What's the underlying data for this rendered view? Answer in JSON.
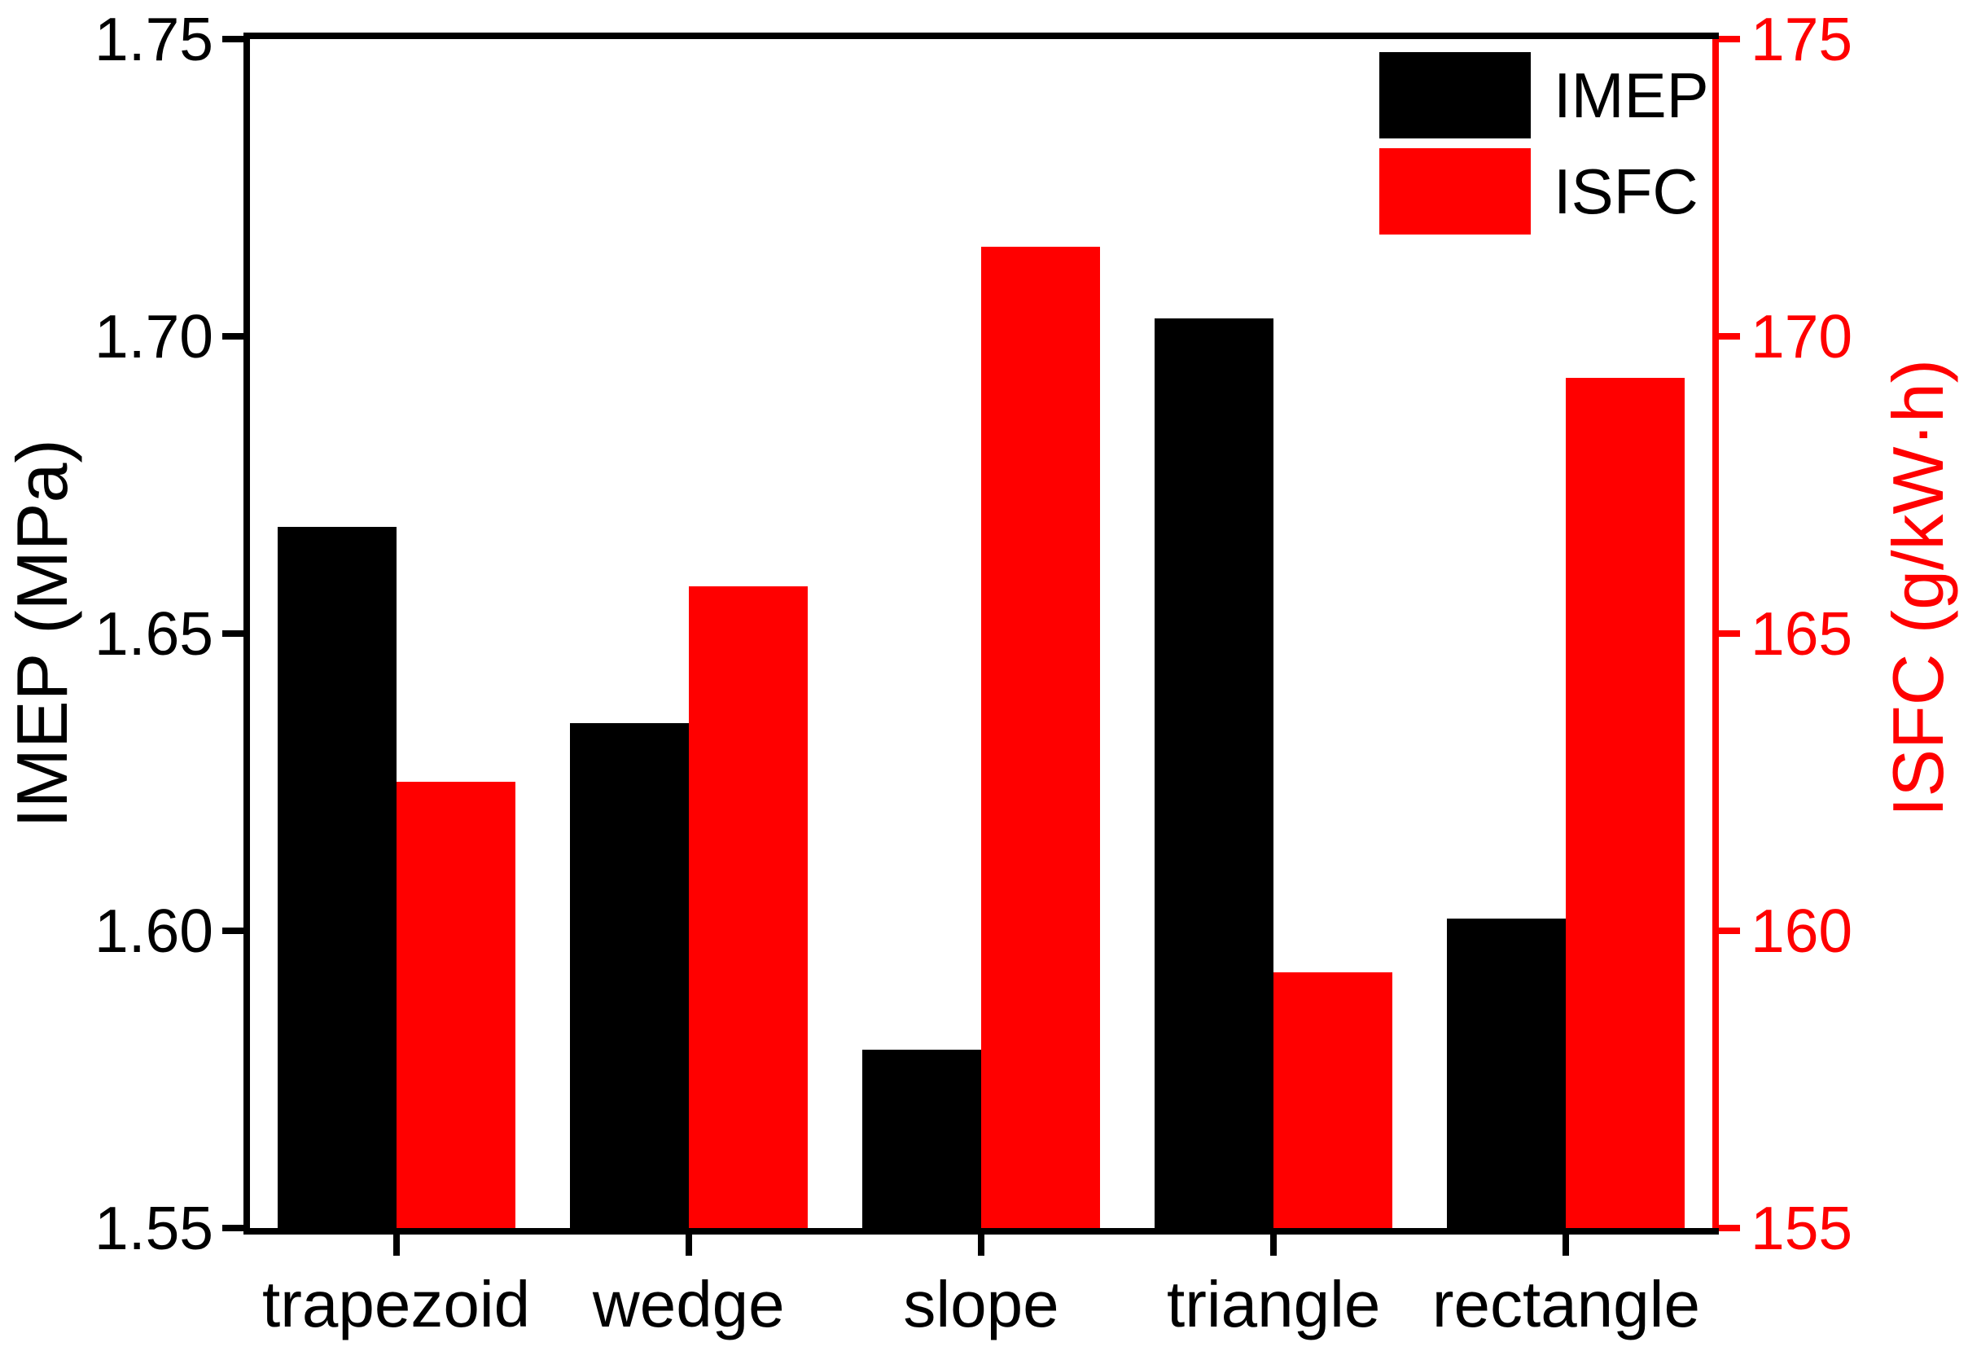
{
  "chart_data": {
    "type": "bar",
    "categories": [
      "trapezoid",
      "wedge",
      "slope",
      "triangle",
      "rectangle"
    ],
    "series": [
      {
        "name": "IMEP",
        "axis": "left",
        "color": "#000000",
        "values": [
          1.668,
          1.635,
          1.58,
          1.703,
          1.602
        ]
      },
      {
        "name": "ISFC",
        "axis": "right",
        "color": "#ff0000",
        "values": [
          162.5,
          165.8,
          171.5,
          159.3,
          169.3
        ]
      }
    ],
    "left_axis": {
      "label": "IMEP (MPa)",
      "min": 1.55,
      "max": 1.75,
      "tick_labels": [
        "1.75",
        "1.70",
        "1.65",
        "1.60",
        "1.55"
      ]
    },
    "right_axis": {
      "label": "ISFC (g/kW·h)",
      "min": 155,
      "max": 175,
      "tick_labels": [
        "175",
        "170",
        "165",
        "160",
        "155"
      ]
    },
    "legend": {
      "position": "top-right",
      "entries": [
        "IMEP",
        "ISFC"
      ]
    },
    "grid": false
  }
}
